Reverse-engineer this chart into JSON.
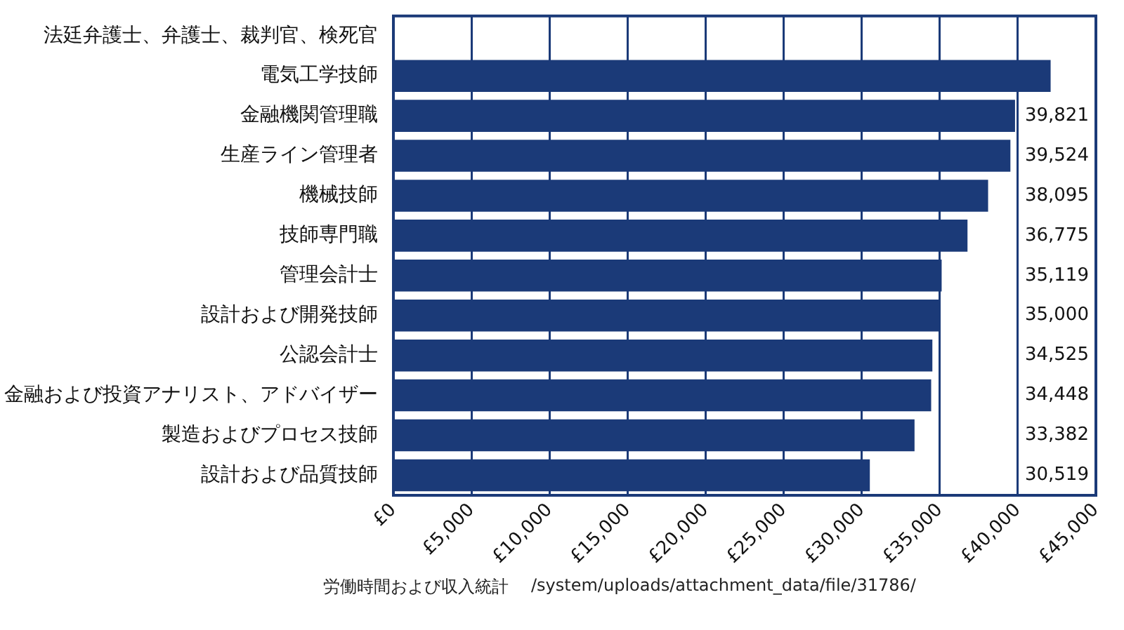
{
  "chart_data": {
    "type": "bar",
    "orientation": "horizontal",
    "categories": [
      "法廷弁護士、弁護士、裁判官、検死官",
      "電気工学技師",
      "金融機関管理職",
      "生産ライン管理者",
      "機械技師",
      "技師専門職",
      "管理会計士",
      "設計および開発技師",
      "公認会計士",
      "金融および投資アナリスト、アドバイザー",
      "製造およびプロセス技師",
      "設計および品質技師"
    ],
    "values": [
      null,
      42100,
      39821,
      39524,
      38095,
      36775,
      35119,
      35000,
      34525,
      34448,
      33382,
      30519
    ],
    "value_labels": [
      null,
      null,
      "39,821",
      "39,524",
      "38,095",
      "36,775",
      "35,119",
      "35,000",
      "34,525",
      "34,448",
      "33,382",
      "30,519"
    ],
    "color": "#1b3a78",
    "xlim": [
      0,
      45000
    ],
    "xticks": [
      {
        "value": 0,
        "label": "£0"
      },
      {
        "value": 5000,
        "label": "£5,000"
      },
      {
        "value": 10000,
        "label": "£10,000"
      },
      {
        "value": 15000,
        "label": "£15,000"
      },
      {
        "value": 20000,
        "label": "£20,000"
      },
      {
        "value": 25000,
        "label": "£25,000"
      },
      {
        "value": 30000,
        "label": "£30,000"
      },
      {
        "value": 35000,
        "label": "£35,000"
      },
      {
        "value": 40000,
        "label": "£40,000"
      },
      {
        "value": 45000,
        "label": "£45,000"
      }
    ],
    "grid": "x",
    "legend": false,
    "annotations": [
      "労働時間および収入統計",
      "/system/uploads/attachment_data/file/31786/"
    ]
  }
}
